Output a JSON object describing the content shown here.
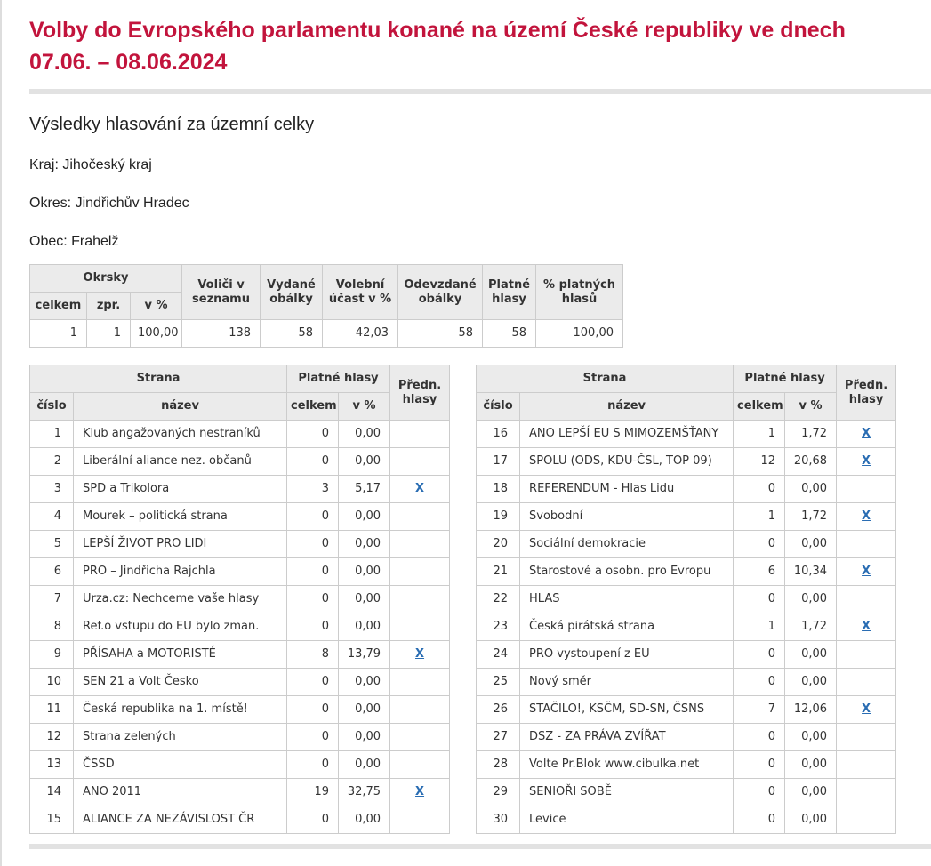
{
  "page": {
    "title": "Volby do Evropského parlamentu konané na území České republiky ve dnech 07.06. – 08.06.2024",
    "subtitle": "Výsledky hlasování za územní celky",
    "kraj_line": "Kraj: Jihočeský kraj",
    "okres_line": "Okres: Jindřichův Hradec",
    "obec_line": "Obec: Frahelž"
  },
  "colors": {
    "title_red": "#c2143c",
    "link_blue": "#2a6db3",
    "table_header_bg": "#ebebeb",
    "table_border": "#cccccc",
    "divider_gray": "#e2e2e2"
  },
  "summary_table": {
    "headers": {
      "okrsky": "Okrsky",
      "celkem": "celkem",
      "zpr": "zpr.",
      "v_pct": "v %",
      "volici": "Voliči v seznamu",
      "vydane": "Vydané obálky",
      "ucast": "Volební účast v %",
      "odevzdane": "Odevzdané obálky",
      "platne": "Platné hlasy",
      "pct_platnych": "% platných hlasů"
    },
    "row": [
      "1",
      "1",
      "100,00",
      "138",
      "58",
      "42,03",
      "58",
      "58",
      "100,00"
    ]
  },
  "party_table_headers": {
    "strana": "Strana",
    "cislo": "číslo",
    "nazev": "název",
    "platne_hlasy": "Platné hlasy",
    "celkem": "celkem",
    "v_pct": "v %",
    "predn_hlasy": "Předn. hlasy",
    "pref_link": "X"
  },
  "party_tables": [
    {
      "rows": [
        {
          "num": "1",
          "name": "Klub angažovaných nestraníků",
          "total": "0",
          "pct": "0,00",
          "pref": false
        },
        {
          "num": "2",
          "name": "Liberální aliance nez. občanů",
          "total": "0",
          "pct": "0,00",
          "pref": false
        },
        {
          "num": "3",
          "name": "SPD a Trikolora",
          "total": "3",
          "pct": "5,17",
          "pref": true
        },
        {
          "num": "4",
          "name": "Mourek – politická strana",
          "total": "0",
          "pct": "0,00",
          "pref": false
        },
        {
          "num": "5",
          "name": "LEPŠÍ ŽIVOT PRO LIDI",
          "total": "0",
          "pct": "0,00",
          "pref": false
        },
        {
          "num": "6",
          "name": "PRO – Jindřicha Rajchla",
          "total": "0",
          "pct": "0,00",
          "pref": false
        },
        {
          "num": "7",
          "name": "Urza.cz: Nechceme vaše hlasy",
          "total": "0",
          "pct": "0,00",
          "pref": false
        },
        {
          "num": "8",
          "name": "Ref.o vstupu do EU bylo zman.",
          "total": "0",
          "pct": "0,00",
          "pref": false
        },
        {
          "num": "9",
          "name": "PŘÍSAHA a MOTORISTÉ",
          "total": "8",
          "pct": "13,79",
          "pref": true
        },
        {
          "num": "10",
          "name": "SEN 21 a Volt Česko",
          "total": "0",
          "pct": "0,00",
          "pref": false
        },
        {
          "num": "11",
          "name": "Česká republika na 1. místě!",
          "total": "0",
          "pct": "0,00",
          "pref": false
        },
        {
          "num": "12",
          "name": "Strana zelených",
          "total": "0",
          "pct": "0,00",
          "pref": false
        },
        {
          "num": "13",
          "name": "ČSSD",
          "total": "0",
          "pct": "0,00",
          "pref": false
        },
        {
          "num": "14",
          "name": "ANO 2011",
          "total": "19",
          "pct": "32,75",
          "pref": true
        },
        {
          "num": "15",
          "name": "ALIANCE ZA NEZÁVISLOST ČR",
          "total": "0",
          "pct": "0,00",
          "pref": false
        }
      ]
    },
    {
      "rows": [
        {
          "num": "16",
          "name": "ANO LEPŠÍ EU S MIMOZEMŠŤANY",
          "total": "1",
          "pct": "1,72",
          "pref": true
        },
        {
          "num": "17",
          "name": "SPOLU (ODS, KDU-ČSL, TOP 09)",
          "total": "12",
          "pct": "20,68",
          "pref": true
        },
        {
          "num": "18",
          "name": "REFERENDUM - Hlas Lidu",
          "total": "0",
          "pct": "0,00",
          "pref": false
        },
        {
          "num": "19",
          "name": "Svobodní",
          "total": "1",
          "pct": "1,72",
          "pref": true
        },
        {
          "num": "20",
          "name": "Sociální demokracie",
          "total": "0",
          "pct": "0,00",
          "pref": false
        },
        {
          "num": "21",
          "name": "Starostové a osobn. pro Evropu",
          "total": "6",
          "pct": "10,34",
          "pref": true
        },
        {
          "num": "22",
          "name": "HLAS",
          "total": "0",
          "pct": "0,00",
          "pref": false
        },
        {
          "num": "23",
          "name": "Česká pirátská strana",
          "total": "1",
          "pct": "1,72",
          "pref": true
        },
        {
          "num": "24",
          "name": "PRO vystoupení z EU",
          "total": "0",
          "pct": "0,00",
          "pref": false
        },
        {
          "num": "25",
          "name": "Nový směr",
          "total": "0",
          "pct": "0,00",
          "pref": false
        },
        {
          "num": "26",
          "name": "STAČILO!, KSČM, SD-SN, ČSNS",
          "total": "7",
          "pct": "12,06",
          "pref": true
        },
        {
          "num": "27",
          "name": "DSZ - ZA PRÁVA ZVÍŘAT",
          "total": "0",
          "pct": "0,00",
          "pref": false
        },
        {
          "num": "28",
          "name": "Volte Pr.Blok www.cibulka.net",
          "total": "0",
          "pct": "0,00",
          "pref": false
        },
        {
          "num": "29",
          "name": "SENIOŘI SOBĚ",
          "total": "0",
          "pct": "0,00",
          "pref": false
        },
        {
          "num": "30",
          "name": "Levice",
          "total": "0",
          "pct": "0,00",
          "pref": false
        }
      ]
    }
  ]
}
